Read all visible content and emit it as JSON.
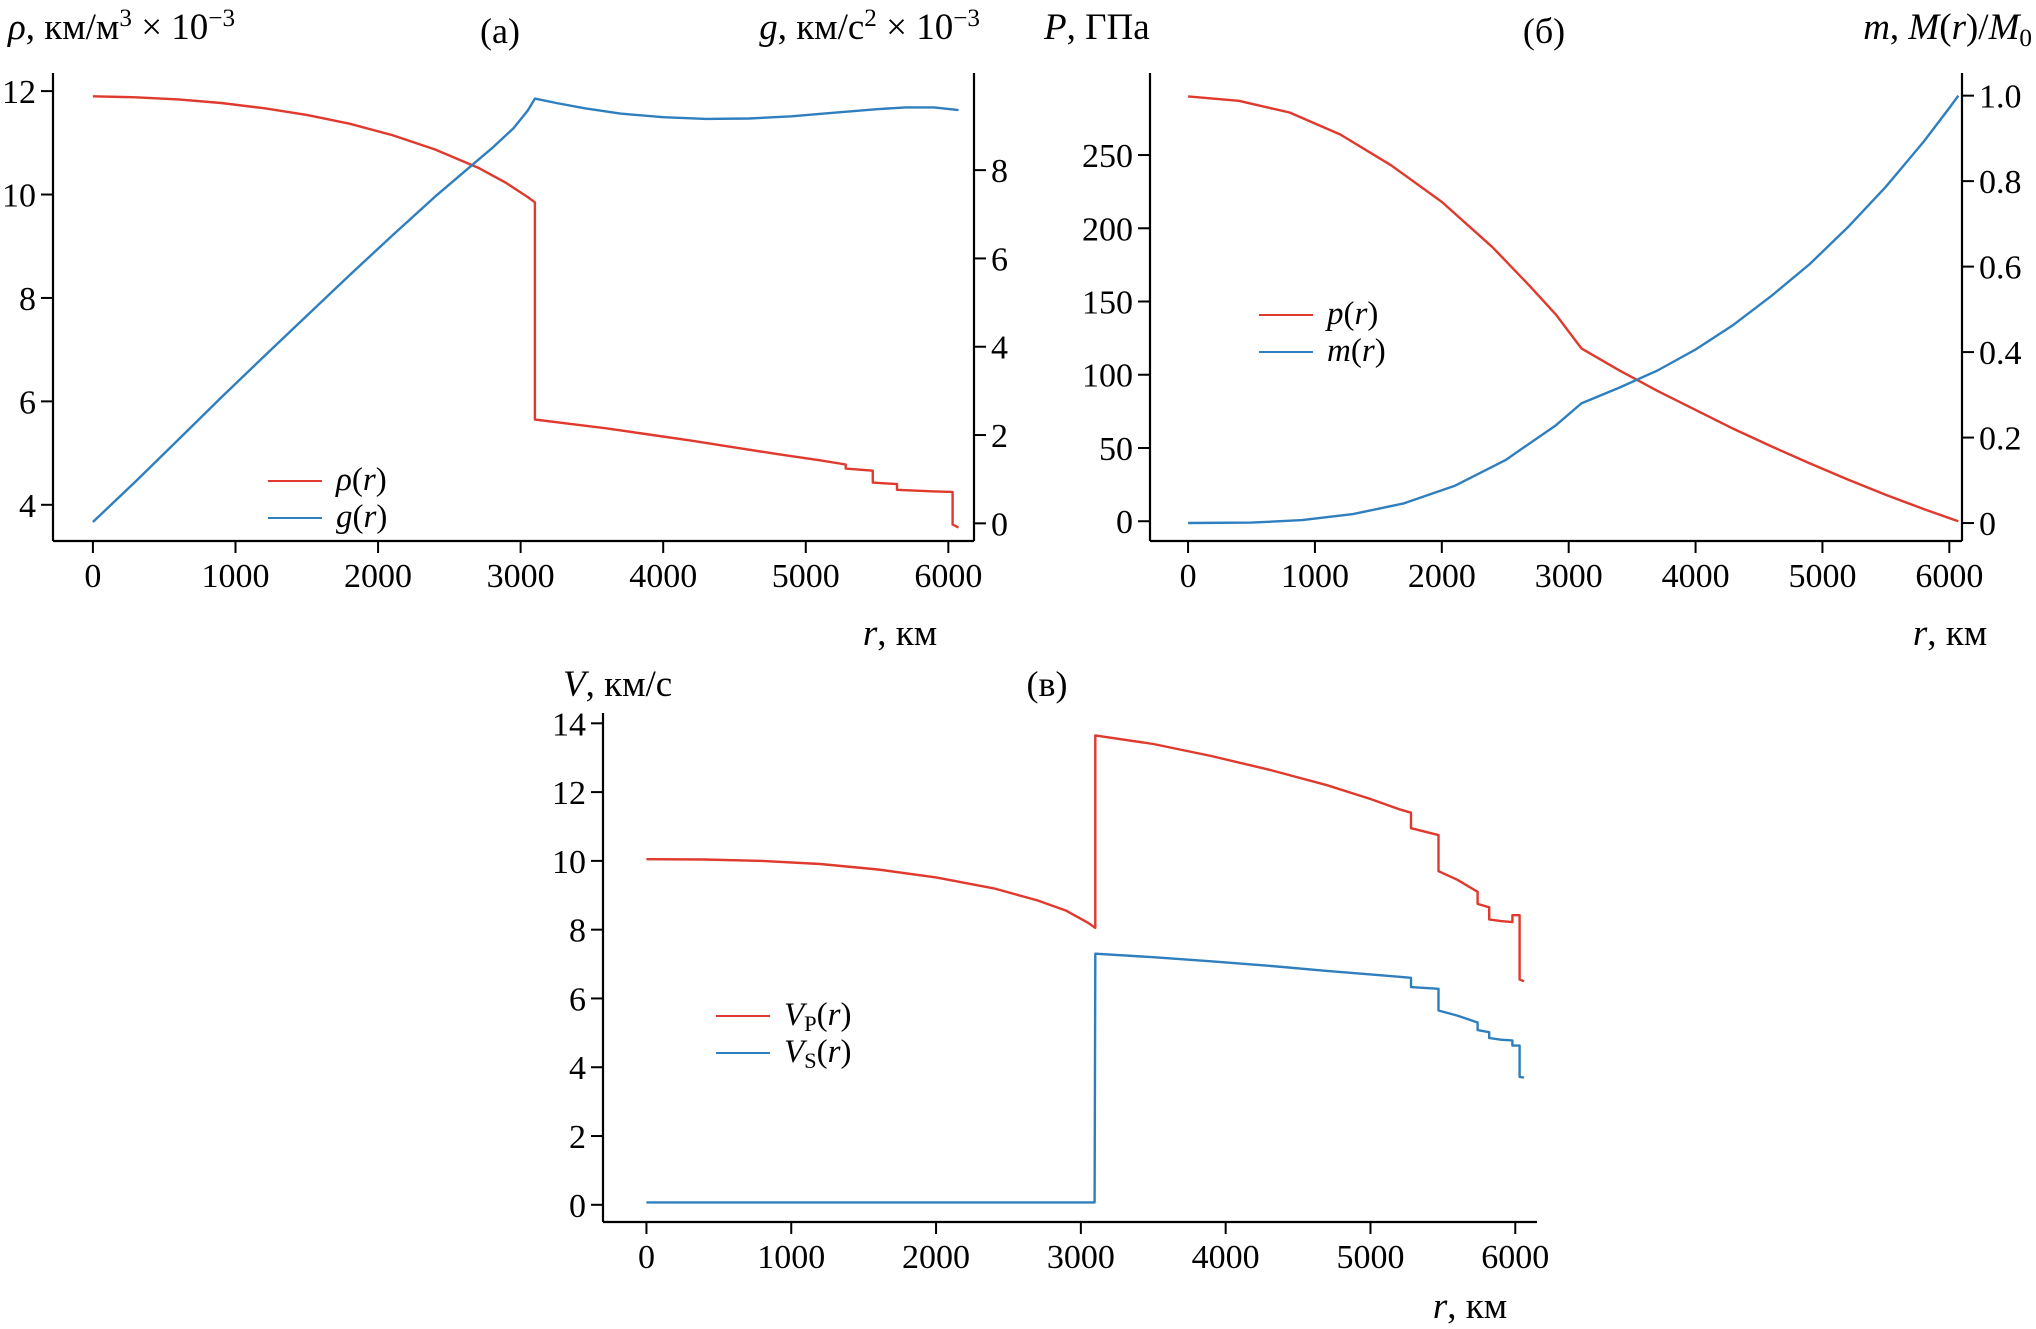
{
  "figure": {
    "background": "#ffffff",
    "axis_color": "#000000",
    "red": "#e0392d",
    "blue": "#2f7fbe"
  },
  "chart_data": [
    {
      "type": "line",
      "panel_label": "(а)",
      "x_axis": {
        "label": "r, км",
        "label_rich": [
          {
            "t": "r",
            "i": 1
          },
          {
            "t": ", км"
          }
        ],
        "range": [
          -280,
          6180
        ],
        "ticks": [
          0,
          1000,
          2000,
          3000,
          4000,
          5000,
          6000
        ],
        "tick_labels": [
          "0",
          "1000",
          "2000",
          "3000",
          "4000",
          "5000",
          "6000"
        ]
      },
      "left_axis": {
        "label": "ρ, км/м³ × 10⁻³",
        "label_rich": [
          {
            "t": "ρ",
            "i": 1
          },
          {
            "t": ", км/м"
          },
          {
            "t": "3",
            "sup": 1
          },
          {
            "t": " × 10"
          },
          {
            "t": "−3",
            "sup": 1
          }
        ],
        "range": [
          3.3,
          12.35
        ],
        "ticks": [
          4,
          6,
          8,
          10,
          12
        ],
        "tick_labels": [
          "4",
          "6",
          "8",
          "10",
          "12"
        ]
      },
      "right_axis": {
        "label": "g, км/с² × 10⁻³",
        "label_rich": [
          {
            "t": "g",
            "i": 1
          },
          {
            "t": ", км/с"
          },
          {
            "t": "2",
            "sup": 1
          },
          {
            "t": " × 10"
          },
          {
            "t": "−3",
            "sup": 1
          }
        ],
        "range": [
          -0.4,
          10.2
        ],
        "ticks": [
          0,
          2,
          4,
          6,
          8
        ],
        "tick_labels": [
          "0",
          "2",
          "4",
          "6",
          "8"
        ]
      },
      "series": [
        {
          "key": "rho",
          "name": "ρ(r)",
          "label_rich": [
            {
              "t": "ρ",
              "i": 1
            },
            {
              "t": "("
            },
            {
              "t": "r",
              "i": 1
            },
            {
              "t": ")"
            }
          ],
          "axis": "left",
          "color": "#e0392d",
          "points": [
            [
              0,
              11.9
            ],
            [
              300,
              11.88
            ],
            [
              600,
              11.84
            ],
            [
              900,
              11.77
            ],
            [
              1200,
              11.67
            ],
            [
              1500,
              11.54
            ],
            [
              1800,
              11.37
            ],
            [
              2100,
              11.15
            ],
            [
              2400,
              10.87
            ],
            [
              2700,
              10.52
            ],
            [
              2900,
              10.22
            ],
            [
              3050,
              9.95
            ],
            [
              3100,
              9.85
            ],
            [
              3100,
              5.65
            ],
            [
              3300,
              5.58
            ],
            [
              3600,
              5.48
            ],
            [
              3900,
              5.36
            ],
            [
              4200,
              5.24
            ],
            [
              4500,
              5.11
            ],
            [
              4800,
              4.98
            ],
            [
              5100,
              4.86
            ],
            [
              5280,
              4.78
            ],
            [
              5280,
              4.7
            ],
            [
              5470,
              4.66
            ],
            [
              5470,
              4.43
            ],
            [
              5640,
              4.4
            ],
            [
              5640,
              4.29
            ],
            [
              5800,
              4.27
            ],
            [
              5900,
              4.26
            ],
            [
              6030,
              4.25
            ],
            [
              6030,
              3.62
            ],
            [
              6071,
              3.56
            ]
          ]
        },
        {
          "key": "g",
          "name": "g(r)",
          "label_rich": [
            {
              "t": "g",
              "i": 1
            },
            {
              "t": "("
            },
            {
              "t": "r",
              "i": 1
            },
            {
              "t": ")"
            }
          ],
          "axis": "right",
          "color": "#2f7fbe",
          "points": [
            [
              0,
              0.03
            ],
            [
              300,
              0.95
            ],
            [
              600,
              1.9
            ],
            [
              900,
              2.85
            ],
            [
              1200,
              3.78
            ],
            [
              1500,
              4.7
            ],
            [
              1800,
              5.62
            ],
            [
              2100,
              6.52
            ],
            [
              2400,
              7.4
            ],
            [
              2600,
              7.95
            ],
            [
              2800,
              8.5
            ],
            [
              2950,
              8.95
            ],
            [
              3050,
              9.35
            ],
            [
              3100,
              9.62
            ],
            [
              3250,
              9.52
            ],
            [
              3450,
              9.4
            ],
            [
              3700,
              9.28
            ],
            [
              4000,
              9.2
            ],
            [
              4300,
              9.16
            ],
            [
              4600,
              9.17
            ],
            [
              4900,
              9.22
            ],
            [
              5200,
              9.3
            ],
            [
              5500,
              9.38
            ],
            [
              5700,
              9.42
            ],
            [
              5900,
              9.42
            ],
            [
              6071,
              9.36
            ]
          ]
        }
      ]
    },
    {
      "type": "line",
      "panel_label": "(б)",
      "x_axis": {
        "label": "r, км",
        "label_rich": [
          {
            "t": "r",
            "i": 1
          },
          {
            "t": ", км"
          }
        ],
        "range": [
          -300,
          6100
        ],
        "ticks": [
          0,
          1000,
          2000,
          3000,
          4000,
          5000,
          6000
        ],
        "tick_labels": [
          "0",
          "1000",
          "2000",
          "3000",
          "4000",
          "5000",
          "6000"
        ]
      },
      "left_axis": {
        "label": "P, ГПа",
        "label_rich": [
          {
            "t": "P",
            "i": 1
          },
          {
            "t": ", ГПа"
          }
        ],
        "range": [
          -13.5,
          306
        ],
        "ticks": [
          0,
          50,
          100,
          150,
          200,
          250
        ],
        "tick_labels": [
          "0",
          "50",
          "100",
          "150",
          "200",
          "250"
        ]
      },
      "right_axis": {
        "label": "m, M(r)/M₀",
        "label_rich": [
          {
            "t": "m",
            "i": 1
          },
          {
            "t": ", "
          },
          {
            "t": "M",
            "i": 1
          },
          {
            "t": "("
          },
          {
            "t": "r",
            "i": 1
          },
          {
            "t": ")/"
          },
          {
            "t": "M",
            "i": 1
          },
          {
            "t": "0",
            "sub": 1
          }
        ],
        "range": [
          -0.042,
          1.053
        ],
        "ticks": [
          0,
          0.2,
          0.4,
          0.6,
          0.8,
          1.0
        ],
        "tick_labels": [
          "0",
          "0.2",
          "0.4",
          "0.6",
          "0.8",
          "1.0"
        ]
      },
      "series": [
        {
          "key": "p",
          "name": "p(r)",
          "label_rich": [
            {
              "t": "p",
              "i": 1
            },
            {
              "t": "("
            },
            {
              "t": "r",
              "i": 1
            },
            {
              "t": ")"
            }
          ],
          "axis": "left",
          "color": "#e0392d",
          "points": [
            [
              0,
              290
            ],
            [
              400,
              287
            ],
            [
              800,
              279
            ],
            [
              1200,
              264
            ],
            [
              1600,
              243
            ],
            [
              2000,
              218
            ],
            [
              2400,
              187
            ],
            [
              2700,
              160
            ],
            [
              2900,
              141
            ],
            [
              3100,
              118
            ],
            [
              3400,
              103
            ],
            [
              3700,
              89
            ],
            [
              4000,
              76
            ],
            [
              4300,
              63
            ],
            [
              4600,
              51
            ],
            [
              4900,
              39.5
            ],
            [
              5200,
              28.5
            ],
            [
              5500,
              18
            ],
            [
              5800,
              8.3
            ],
            [
              6000,
              2.1
            ],
            [
              6071,
              0
            ]
          ]
        },
        {
          "key": "m",
          "name": "m(r)",
          "label_rich": [
            {
              "t": "m",
              "i": 1
            },
            {
              "t": "("
            },
            {
              "t": "r",
              "i": 1
            },
            {
              "t": ")"
            }
          ],
          "axis": "right",
          "color": "#2f7fbe",
          "points": [
            [
              0,
              0
            ],
            [
              500,
              0.001
            ],
            [
              900,
              0.007
            ],
            [
              1300,
              0.021
            ],
            [
              1700,
              0.046
            ],
            [
              2100,
              0.087
            ],
            [
              2500,
              0.147
            ],
            [
              2900,
              0.229
            ],
            [
              3100,
              0.28
            ],
            [
              3400,
              0.317
            ],
            [
              3700,
              0.357
            ],
            [
              4000,
              0.406
            ],
            [
              4300,
              0.464
            ],
            [
              4600,
              0.532
            ],
            [
              4900,
              0.606
            ],
            [
              5200,
              0.692
            ],
            [
              5500,
              0.787
            ],
            [
              5800,
              0.893
            ],
            [
              6000,
              0.971
            ],
            [
              6071,
              1.0
            ]
          ]
        }
      ]
    },
    {
      "type": "line",
      "panel_label": "(в)",
      "x_axis": {
        "label": "r, км",
        "label_rich": [
          {
            "t": "r",
            "i": 1
          },
          {
            "t": ", км"
          }
        ],
        "range": [
          -300,
          6150
        ],
        "ticks": [
          0,
          1000,
          2000,
          3000,
          4000,
          5000,
          6000
        ],
        "tick_labels": [
          "0",
          "1000",
          "2000",
          "3000",
          "4000",
          "5000",
          "6000"
        ]
      },
      "left_axis": {
        "label": "V, км/с",
        "label_rich": [
          {
            "t": "V",
            "i": 1
          },
          {
            "t": ", км/с"
          }
        ],
        "range": [
          -0.5,
          14.3
        ],
        "ticks": [
          0,
          2,
          4,
          6,
          8,
          10,
          12,
          14
        ],
        "tick_labels": [
          "0",
          "2",
          "4",
          "6",
          "8",
          "10",
          "12",
          "14"
        ]
      },
      "series": [
        {
          "key": "vp",
          "name": "VP(r)",
          "label_rich": [
            {
              "t": "V",
              "i": 1
            },
            {
              "t": "P",
              "sub": 1
            },
            {
              "t": "("
            },
            {
              "t": "r",
              "i": 1
            },
            {
              "t": ")"
            }
          ],
          "axis": "left",
          "color": "#e0392d",
          "points": [
            [
              0,
              10.05
            ],
            [
              400,
              10.04
            ],
            [
              800,
              10.0
            ],
            [
              1200,
              9.91
            ],
            [
              1600,
              9.75
            ],
            [
              2000,
              9.52
            ],
            [
              2400,
              9.2
            ],
            [
              2700,
              8.85
            ],
            [
              2900,
              8.55
            ],
            [
              3050,
              8.2
            ],
            [
              3100,
              8.05
            ],
            [
              3100,
              13.65
            ],
            [
              3500,
              13.4
            ],
            [
              3900,
              13.05
            ],
            [
              4300,
              12.65
            ],
            [
              4700,
              12.2
            ],
            [
              5000,
              11.8
            ],
            [
              5200,
              11.5
            ],
            [
              5280,
              11.4
            ],
            [
              5280,
              10.95
            ],
            [
              5470,
              10.75
            ],
            [
              5470,
              9.7
            ],
            [
              5600,
              9.45
            ],
            [
              5740,
              9.1
            ],
            [
              5740,
              8.75
            ],
            [
              5820,
              8.65
            ],
            [
              5820,
              8.3
            ],
            [
              5900,
              8.25
            ],
            [
              5980,
              8.22
            ],
            [
              5980,
              8.42
            ],
            [
              6030,
              8.42
            ],
            [
              6030,
              6.55
            ],
            [
              6060,
              6.5
            ]
          ]
        },
        {
          "key": "vs",
          "name": "VS(r)",
          "label_rich": [
            {
              "t": "V",
              "i": 1
            },
            {
              "t": "S",
              "sub": 1
            },
            {
              "t": "("
            },
            {
              "t": "r",
              "i": 1
            },
            {
              "t": ")"
            }
          ],
          "axis": "left",
          "color": "#2f7fbe",
          "points": [
            [
              0,
              0.07
            ],
            [
              3095,
              0.07
            ],
            [
              3100,
              7.3
            ],
            [
              3500,
              7.2
            ],
            [
              3900,
              7.08
            ],
            [
              4300,
              6.95
            ],
            [
              4700,
              6.8
            ],
            [
              5000,
              6.7
            ],
            [
              5200,
              6.63
            ],
            [
              5280,
              6.6
            ],
            [
              5280,
              6.33
            ],
            [
              5470,
              6.28
            ],
            [
              5470,
              5.65
            ],
            [
              5600,
              5.5
            ],
            [
              5740,
              5.3
            ],
            [
              5740,
              5.08
            ],
            [
              5820,
              5.02
            ],
            [
              5820,
              4.85
            ],
            [
              5900,
              4.8
            ],
            [
              5980,
              4.78
            ],
            [
              5980,
              4.63
            ],
            [
              6030,
              4.63
            ],
            [
              6030,
              3.72
            ],
            [
              6060,
              3.7
            ]
          ]
        }
      ]
    }
  ]
}
